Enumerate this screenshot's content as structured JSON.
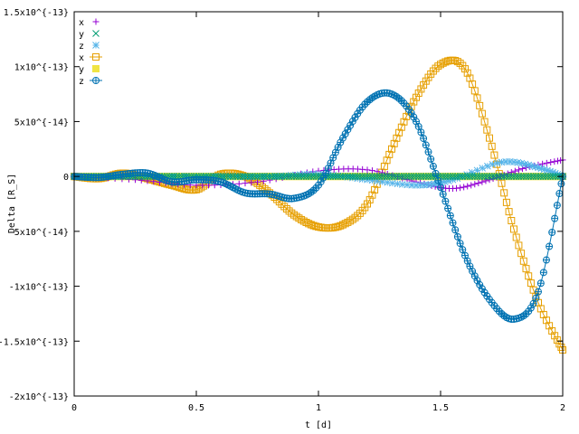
{
  "chart_data": {
    "type": "line",
    "xlabel": "t [d]",
    "ylabel": "Delta [R_S]",
    "xlim": [
      0,
      2
    ],
    "ylim": [
      -2e-13,
      1.5e-13
    ],
    "grid": false,
    "legend_position": "top-left",
    "x_ticks": [
      {
        "value": 0,
        "label": "0"
      },
      {
        "value": 0.5,
        "label": "0.5"
      },
      {
        "value": 1,
        "label": "1"
      },
      {
        "value": 1.5,
        "label": "1.5"
      },
      {
        "value": 2,
        "label": "2"
      }
    ],
    "y_ticks": [
      {
        "value": 1.5e-13,
        "label": "1.5x10^{-13}"
      },
      {
        "value": 1e-13,
        "label": "1x10^{-13}"
      },
      {
        "value": 5e-14,
        "label": "5x10^{-14}"
      },
      {
        "value": 0,
        "label": "0"
      },
      {
        "value": -5e-14,
        "label": "-5x10^{-14}"
      },
      {
        "value": -1e-13,
        "label": "-1x10^{-13}"
      },
      {
        "value": -1.5e-13,
        "label": "-1.5x10^{-13}"
      },
      {
        "value": -2e-13,
        "label": "-2x10^{-13}"
      }
    ],
    "series": [
      {
        "name": "x",
        "color": "#9400d3",
        "marker": "plus",
        "draw_line": false,
        "points": [
          [
            0,
            0
          ],
          [
            0.25,
            -3e-15
          ],
          [
            0.5,
            -8e-15
          ],
          [
            0.75,
            -5e-15
          ],
          [
            1.0,
            5e-15
          ],
          [
            1.2,
            6e-15
          ],
          [
            1.4,
            -5e-15
          ],
          [
            1.55,
            -1.1e-14
          ],
          [
            1.7,
            -3e-15
          ],
          [
            1.85,
            8e-15
          ],
          [
            2.0,
            1.5e-14
          ]
        ]
      },
      {
        "name": "y",
        "color": "#009e73",
        "marker": "cross",
        "draw_line": false,
        "points": [
          [
            0,
            0
          ],
          [
            2.0,
            0
          ]
        ]
      },
      {
        "name": "z",
        "color": "#56b4e9",
        "marker": "star",
        "draw_line": false,
        "points": [
          [
            0,
            0
          ],
          [
            0.5,
            0
          ],
          [
            0.8,
            0
          ],
          [
            1.0,
            2e-15
          ],
          [
            1.2,
            -3e-15
          ],
          [
            1.4,
            -8e-15
          ],
          [
            1.55,
            -3e-15
          ],
          [
            1.75,
            1.3e-14
          ],
          [
            1.9,
            8e-15
          ],
          [
            2.0,
            0
          ]
        ]
      },
      {
        "name": "x",
        "color": "#e69f00",
        "marker": "square",
        "draw_line": true,
        "points": [
          [
            0,
            0
          ],
          [
            0.1,
            -2e-15
          ],
          [
            0.2,
            3e-15
          ],
          [
            0.3,
            -2e-15
          ],
          [
            0.4,
            -8e-15
          ],
          [
            0.5,
            -1.2e-14
          ],
          [
            0.6,
            2e-15
          ],
          [
            0.7,
            0
          ],
          [
            0.8,
            -1.5e-14
          ],
          [
            0.9,
            -3.5e-14
          ],
          [
            1.0,
            -4.6e-14
          ],
          [
            1.1,
            -4.4e-14
          ],
          [
            1.2,
            -2.5e-14
          ],
          [
            1.3,
            2.5e-14
          ],
          [
            1.4,
            7.2e-14
          ],
          [
            1.5,
            1.02e-13
          ],
          [
            1.6,
            9.8e-14
          ],
          [
            1.7,
            3.5e-14
          ],
          [
            1.8,
            -4.8e-14
          ],
          [
            1.9,
            -1.15e-13
          ],
          [
            2.0,
            -1.58e-13
          ]
        ]
      },
      {
        "name": "y",
        "color": "#f0e442",
        "marker": "filled-square",
        "draw_line": false,
        "points": [
          [
            0,
            0
          ],
          [
            2.0,
            0
          ]
        ]
      },
      {
        "name": "z",
        "color": "#0072b2",
        "marker": "circle",
        "draw_line": true,
        "points": [
          [
            0,
            0
          ],
          [
            0.1,
            -1e-15
          ],
          [
            0.2,
            2e-15
          ],
          [
            0.3,
            3e-15
          ],
          [
            0.4,
            -5e-15
          ],
          [
            0.5,
            -3e-15
          ],
          [
            0.6,
            -5e-15
          ],
          [
            0.7,
            -1.5e-14
          ],
          [
            0.8,
            -1.6e-14
          ],
          [
            0.9,
            -2e-14
          ],
          [
            1.0,
            -8e-15
          ],
          [
            1.1,
            3.5e-14
          ],
          [
            1.2,
            6.8e-14
          ],
          [
            1.3,
            7.5e-14
          ],
          [
            1.4,
            5e-14
          ],
          [
            1.5,
            -1e-14
          ],
          [
            1.6,
            -7.2e-14
          ],
          [
            1.7,
            -1.12e-13
          ],
          [
            1.8,
            -1.3e-13
          ],
          [
            1.9,
            -1.05e-13
          ],
          [
            2.0,
            0
          ]
        ]
      }
    ]
  }
}
